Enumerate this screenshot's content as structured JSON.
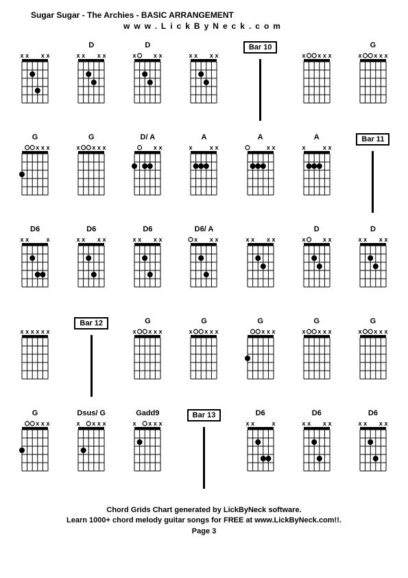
{
  "title": "Sugar Sugar - The Archies - BASIC ARRANGEMENT",
  "website": "www.LickByNeck.com",
  "footer_line1": "Chord Grids Chart generated by LickByNeck software.",
  "footer_line2": "Learn 1000+ chord melody guitar songs for FREE at www.LickByNeck.com!!.",
  "page": "Page 3",
  "chord_style": {
    "strings": 6,
    "frets": 5,
    "width": 50,
    "height": 80,
    "nut_height": 4,
    "dot_radius": 4,
    "x_fontsize": 9,
    "o_fontsize": 9,
    "line_color": "#000000",
    "dot_color": "#000000",
    "bg_color": "#ffffff"
  },
  "cells": [
    {
      "type": "chord",
      "name": "",
      "mutes": [
        0,
        1,
        4,
        5
      ],
      "opens": [],
      "dots": [
        [
          2,
          2
        ],
        [
          3,
          4
        ]
      ]
    },
    {
      "type": "chord",
      "name": "D",
      "mutes": [
        0,
        1,
        4,
        5
      ],
      "opens": [],
      "dots": [
        [
          2,
          2
        ],
        [
          3,
          3
        ]
      ]
    },
    {
      "type": "chord",
      "name": "D",
      "mutes": [
        0,
        4,
        5
      ],
      "opens": [
        1
      ],
      "dots": [
        [
          2,
          2
        ],
        [
          3,
          3
        ]
      ]
    },
    {
      "type": "chord",
      "name": "",
      "mutes": [
        0,
        1,
        4,
        5
      ],
      "opens": [],
      "dots": [
        [
          2,
          2
        ],
        [
          3,
          3
        ]
      ]
    },
    {
      "type": "bar",
      "label": "Bar 10"
    },
    {
      "type": "chord",
      "name": "",
      "mutes": [
        0,
        3,
        4,
        5
      ],
      "opens": [
        1,
        2
      ],
      "dots": []
    },
    {
      "type": "chord",
      "name": "G",
      "mutes": [
        0,
        3,
        4,
        5
      ],
      "opens": [
        1,
        2
      ],
      "dots": []
    },
    {
      "type": "chord",
      "name": "G",
      "mutes": [
        3,
        4,
        5
      ],
      "opens": [
        1,
        2
      ],
      "dots": [
        [
          0,
          3
        ]
      ]
    },
    {
      "type": "chord",
      "name": "G",
      "mutes": [
        0,
        3,
        4,
        5
      ],
      "opens": [
        1,
        2
      ],
      "dots": []
    },
    {
      "type": "chord",
      "name": "D/ A",
      "mutes": [
        4,
        5
      ],
      "opens": [
        1
      ],
      "dots": [
        [
          0,
          2
        ],
        [
          2,
          2
        ],
        [
          3,
          2
        ]
      ]
    },
    {
      "type": "chord",
      "name": "A",
      "mutes": [
        0,
        4,
        5
      ],
      "opens": [],
      "dots": [
        [
          1,
          2
        ],
        [
          2,
          2
        ],
        [
          3,
          2
        ]
      ]
    },
    {
      "type": "chord",
      "name": "A",
      "mutes": [
        4,
        5
      ],
      "opens": [
        0
      ],
      "dots": [
        [
          1,
          2
        ],
        [
          2,
          2
        ],
        [
          3,
          2
        ]
      ]
    },
    {
      "type": "chord",
      "name": "A",
      "mutes": [
        0,
        4,
        5
      ],
      "opens": [],
      "dots": [
        [
          1,
          2
        ],
        [
          2,
          2
        ],
        [
          3,
          2
        ]
      ]
    },
    {
      "type": "bar",
      "label": "Bar 11"
    },
    {
      "type": "chord",
      "name": "D6",
      "mutes": [
        0,
        1,
        5
      ],
      "opens": [],
      "dots": [
        [
          2,
          2
        ],
        [
          3,
          4
        ],
        [
          4,
          4
        ]
      ]
    },
    {
      "type": "chord",
      "name": "D6",
      "mutes": [
        0,
        1,
        4,
        5
      ],
      "opens": [],
      "dots": [
        [
          2,
          2
        ],
        [
          3,
          4
        ]
      ]
    },
    {
      "type": "chord",
      "name": "D6",
      "mutes": [
        0,
        1,
        4,
        5
      ],
      "opens": [],
      "dots": [
        [
          2,
          2
        ],
        [
          3,
          4
        ]
      ]
    },
    {
      "type": "chord",
      "name": "D6/ A",
      "mutes": [
        1,
        4,
        5
      ],
      "opens": [
        0
      ],
      "dots": [
        [
          2,
          2
        ],
        [
          3,
          4
        ]
      ]
    },
    {
      "type": "chord",
      "name": "",
      "mutes": [
        0,
        1,
        4,
        5
      ],
      "opens": [],
      "dots": [
        [
          2,
          2
        ],
        [
          3,
          3
        ]
      ]
    },
    {
      "type": "chord",
      "name": "D",
      "mutes": [
        0,
        4,
        5
      ],
      "opens": [
        1
      ],
      "dots": [
        [
          2,
          2
        ],
        [
          3,
          3
        ]
      ]
    },
    {
      "type": "chord",
      "name": "D",
      "mutes": [
        0,
        1,
        4,
        5
      ],
      "opens": [],
      "dots": [
        [
          2,
          2
        ],
        [
          3,
          3
        ]
      ]
    },
    {
      "type": "chord",
      "name": "",
      "mutes": [
        0,
        1,
        2,
        3,
        4,
        5
      ],
      "opens": [],
      "dots": []
    },
    {
      "type": "bar",
      "label": "Bar 12"
    },
    {
      "type": "chord",
      "name": "G",
      "mutes": [
        0,
        3,
        4,
        5
      ],
      "opens": [
        1,
        2
      ],
      "dots": []
    },
    {
      "type": "chord",
      "name": "G",
      "mutes": [
        0,
        3,
        4,
        5
      ],
      "opens": [
        1,
        2
      ],
      "dots": []
    },
    {
      "type": "chord",
      "name": "G",
      "mutes": [
        3,
        4,
        5
      ],
      "opens": [
        1,
        2
      ],
      "dots": [
        [
          0,
          3
        ]
      ]
    },
    {
      "type": "chord",
      "name": "G",
      "mutes": [
        0,
        3,
        4,
        5
      ],
      "opens": [
        1,
        2
      ],
      "dots": []
    },
    {
      "type": "chord",
      "name": "G",
      "mutes": [
        0,
        3,
        4,
        5
      ],
      "opens": [
        1,
        2
      ],
      "dots": []
    },
    {
      "type": "chord",
      "name": "G",
      "mutes": [
        3,
        4,
        5
      ],
      "opens": [
        1,
        2
      ],
      "dots": [
        [
          0,
          3
        ]
      ]
    },
    {
      "type": "chord",
      "name": "Dsus/ G",
      "mutes": [
        0,
        3,
        4,
        5
      ],
      "opens": [
        2
      ],
      "dots": [
        [
          1,
          3
        ]
      ]
    },
    {
      "type": "chord",
      "name": "Gadd9",
      "mutes": [
        0,
        3,
        4,
        5
      ],
      "opens": [
        2
      ],
      "dots": [
        [
          1,
          2
        ]
      ]
    },
    {
      "type": "bar",
      "label": "Bar 13"
    },
    {
      "type": "chord",
      "name": "D6",
      "mutes": [
        0,
        1,
        5
      ],
      "opens": [],
      "dots": [
        [
          2,
          2
        ],
        [
          3,
          4
        ],
        [
          4,
          4
        ]
      ]
    },
    {
      "type": "chord",
      "name": "D6",
      "mutes": [
        0,
        1,
        4,
        5
      ],
      "opens": [],
      "dots": [
        [
          2,
          2
        ],
        [
          3,
          4
        ]
      ]
    },
    {
      "type": "chord",
      "name": "D6",
      "mutes": [
        0,
        1,
        4,
        5
      ],
      "opens": [],
      "dots": [
        [
          2,
          2
        ],
        [
          3,
          4
        ]
      ]
    }
  ]
}
